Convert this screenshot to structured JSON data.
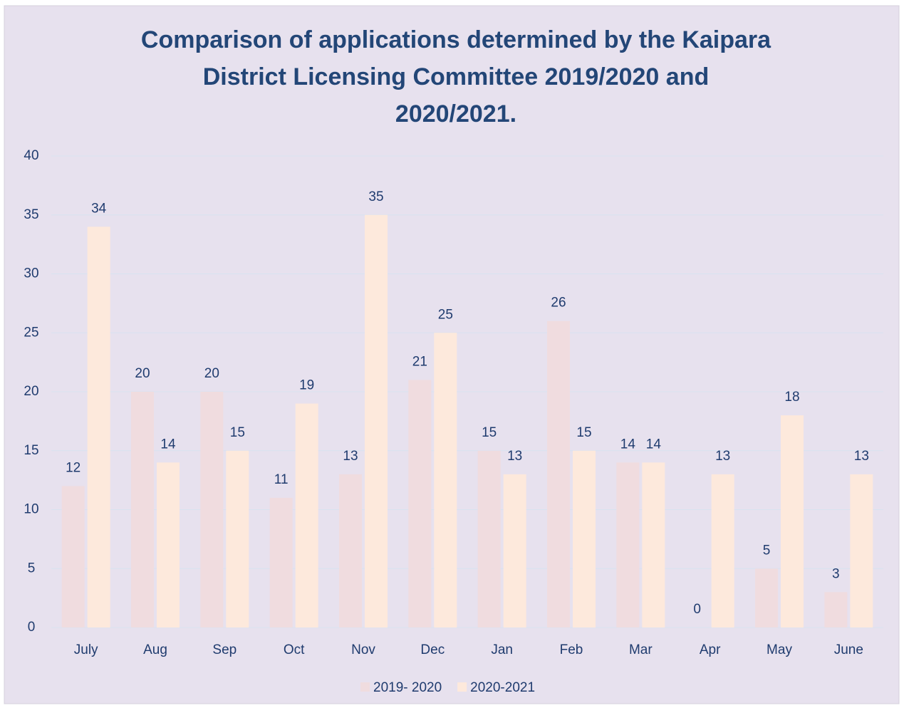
{
  "chart_data": {
    "type": "bar",
    "title": [
      "Comparison of applications determined by the Kaipara",
      "District Licensing Committee 2019/2020 and",
      "2020/2021."
    ],
    "categories": [
      "July",
      "Aug",
      "Sep",
      "Oct",
      "Nov",
      "Dec",
      "Jan",
      "Feb",
      "Mar",
      "Apr",
      "May",
      "June"
    ],
    "series": [
      {
        "name": "2019- 2020",
        "color": "#f0dcdf",
        "values": [
          12,
          20,
          20,
          11,
          13,
          21,
          15,
          26,
          14,
          0,
          5,
          3
        ]
      },
      {
        "name": "2020-2021",
        "color": "#fde9dc",
        "values": [
          34,
          14,
          15,
          19,
          35,
          25,
          13,
          15,
          14,
          13,
          18,
          13
        ]
      }
    ],
    "ylim": [
      0,
      40
    ],
    "yticks": [
      0,
      5,
      10,
      15,
      20,
      25,
      30,
      35,
      40
    ],
    "grid": true,
    "legend": "bottom"
  }
}
